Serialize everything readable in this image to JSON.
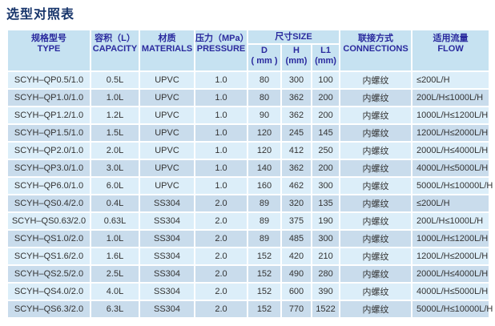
{
  "title": "选型对照表",
  "colors": {
    "title_text": "#17356b",
    "header_bg": "#c6e2f1",
    "header_text": "#2a2a9e",
    "row_light_bg": "#dceef9",
    "row_dark_bg": "#c9dcec",
    "divider": "#ffffff",
    "body_text": "#333333"
  },
  "table": {
    "header": {
      "type": {
        "zh": "规格型号",
        "en": "TYPE"
      },
      "capacity": {
        "zh": "容积（L）",
        "en": "CAPACITY"
      },
      "materials": {
        "zh": "材质",
        "en": "MATERIALS"
      },
      "pressure": {
        "zh": "压力（MPa）",
        "en": "PRESSURE"
      },
      "size": {
        "zh": "尺寸SIZE",
        "sub": [
          {
            "l1": "D",
            "l2": "( mm )"
          },
          {
            "l1": "H",
            "l2": "(mm)"
          },
          {
            "l1": "L1",
            "l2": "(mm)"
          }
        ]
      },
      "connections": {
        "zh": "联接方式",
        "en": "CONNECTIONS"
      },
      "flow": {
        "zh": "适用流量",
        "en": "FLOW"
      }
    },
    "rows": [
      [
        "SCYH–QP0.5/1.0",
        "0.5L",
        "UPVC",
        "1.0",
        "80",
        "300",
        "100",
        "内螺纹",
        "≤200L/H"
      ],
      [
        "SCYH–QP1.0/1.0",
        "1.0L",
        "UPVC",
        "1.0",
        "80",
        "362",
        "200",
        "内螺纹",
        "200L/H≤1000L/H"
      ],
      [
        "SCYH–QP1.2/1.0",
        "1.2L",
        "UPVC",
        "1.0",
        "90",
        "362",
        "200",
        "内螺纹",
        "1000L/H≤1200L/H"
      ],
      [
        "SCYH–QP1.5/1.0",
        "1.5L",
        "UPVC",
        "1.0",
        "120",
        "245",
        "145",
        "内螺纹",
        "1200L/H≤2000L/H"
      ],
      [
        "SCYH–QP2.0/1.0",
        "2.0L",
        "UPVC",
        "1.0",
        "120",
        "412",
        "250",
        "内螺纹",
        "2000L/H≤4000L/H"
      ],
      [
        "SCYH–QP3.0/1.0",
        "3.0L",
        "UPVC",
        "1.0",
        "140",
        "362",
        "200",
        "内螺纹",
        "4000L/H≤5000L/H"
      ],
      [
        "SCYH–QP6.0/1.0",
        "6.0L",
        "UPVC",
        "1.0",
        "160",
        "462",
        "300",
        "内螺纹",
        "5000L/H≤10000L/H"
      ],
      [
        "SCYH–QS0.4/2.0",
        "0.4L",
        "SS304",
        "2.0",
        "89",
        "320",
        "135",
        "内螺纹",
        "≤200L/H"
      ],
      [
        "SCYH–QS0.63/2.0",
        "0.63L",
        "SS304",
        "2.0",
        "89",
        "375",
        "190",
        "内螺纹",
        "200L/H≤1000L/H"
      ],
      [
        "SCYH–QS1.0/2.0",
        "1.0L",
        "SS304",
        "2.0",
        "89",
        "485",
        "300",
        "内螺纹",
        "1000L/H≤1200L/H"
      ],
      [
        "SCYH–QS1.6/2.0",
        "1.6L",
        "SS304",
        "2.0",
        "152",
        "420",
        "210",
        "内螺纹",
        "1200L/H≤2000L/H"
      ],
      [
        "SCYH–QS2.5/2.0",
        "2.5L",
        "SS304",
        "2.0",
        "152",
        "490",
        "280",
        "内螺纹",
        "2000L/H≤4000L/H"
      ],
      [
        "SCYH–QS4.0/2.0",
        "4.0L",
        "SS304",
        "2.0",
        "152",
        "600",
        "390",
        "内螺纹",
        "4000L/H≤5000L/H"
      ],
      [
        "SCYH–QS6.3/2.0",
        "6.3L",
        "SS304",
        "2.0",
        "152",
        "770",
        "1522",
        "内螺纹",
        "5000L/H≤10000L/H"
      ]
    ]
  }
}
